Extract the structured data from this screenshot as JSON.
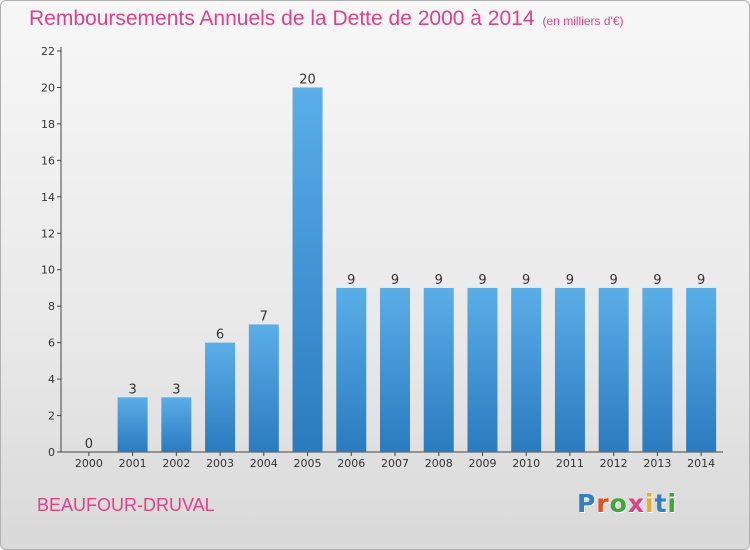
{
  "title": "Remboursements Annuels de la Dette de 2000 à 2014",
  "subtitle": "(en milliers d'€)",
  "commune": "BEAUFOUR-DRUVAL",
  "logo": {
    "text": "Proxiti",
    "letter_colors": [
      "#2f7fc9",
      "#e94e1b",
      "#3aaa35",
      "#e0408a",
      "#f5a623",
      "#2f7fc9",
      "#3aaa35"
    ]
  },
  "chart_data": {
    "type": "bar",
    "categories": [
      "2000",
      "2001",
      "2002",
      "2003",
      "2004",
      "2005",
      "2006",
      "2007",
      "2008",
      "2009",
      "2010",
      "2011",
      "2012",
      "2013",
      "2014"
    ],
    "values": [
      0,
      3,
      3,
      6,
      7,
      20,
      9,
      9,
      9,
      9,
      9,
      9,
      9,
      9,
      9
    ],
    "ylim": [
      0,
      22
    ],
    "yticks": [
      0,
      2,
      4,
      6,
      8,
      10,
      12,
      14,
      16,
      18,
      20,
      22
    ],
    "grid": false,
    "bar_color_top": "#5aaee8",
    "bar_color_bottom": "#2a7bbf"
  }
}
